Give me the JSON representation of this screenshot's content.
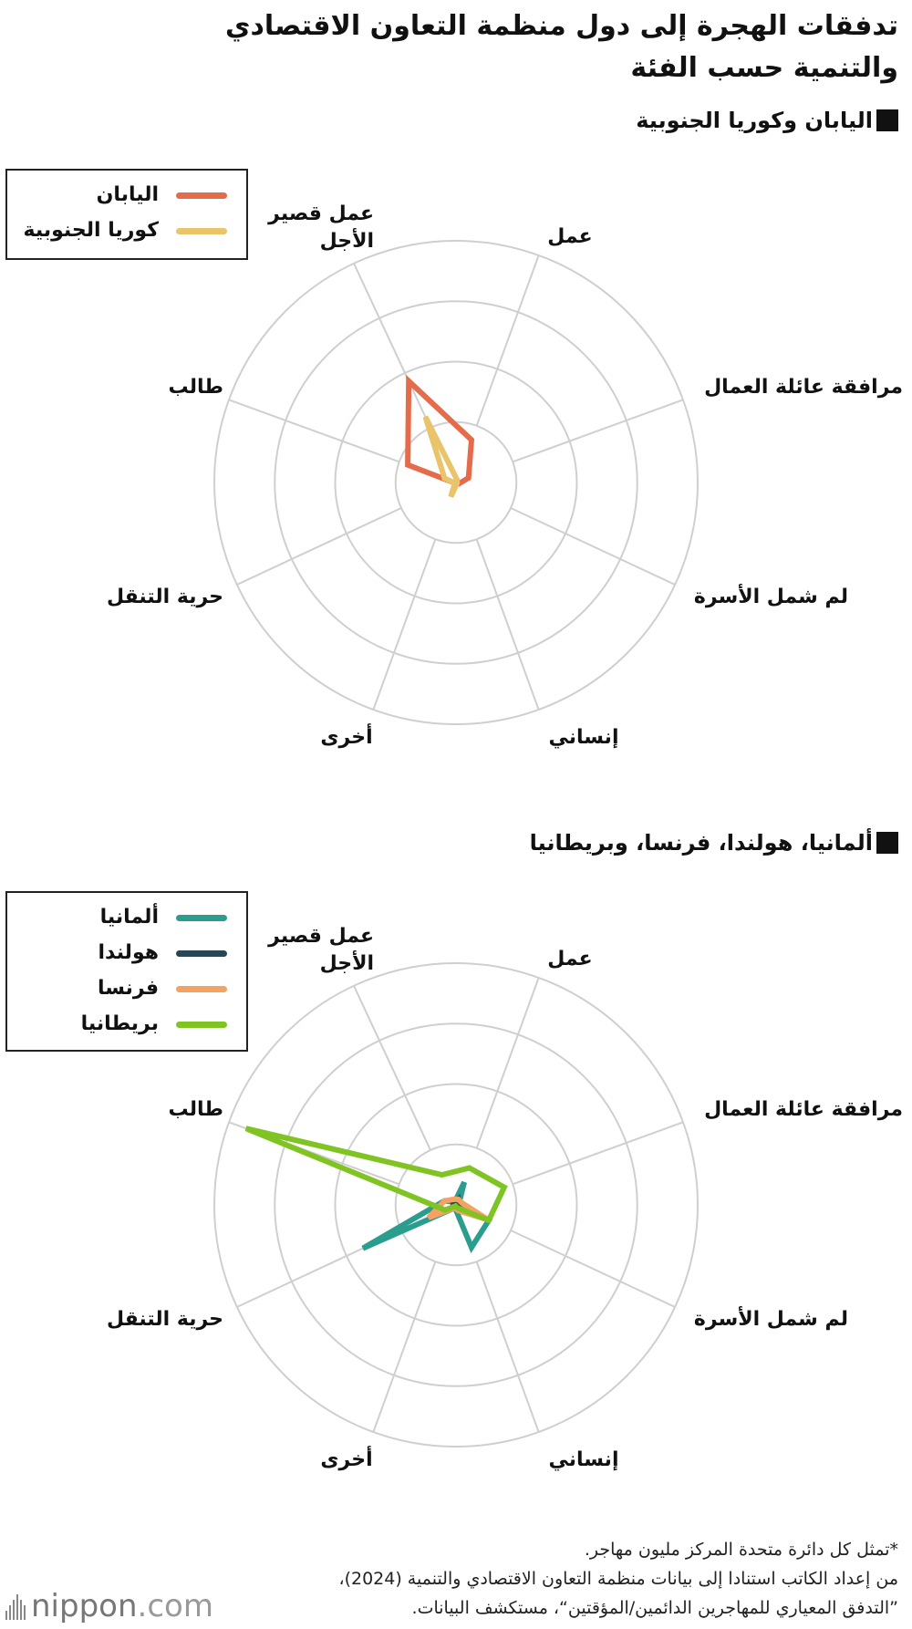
{
  "title": "تدفقات الهجرة إلى دول منظمة التعاون الاقتصادي والتنمية حسب الفئة",
  "chart_data": [
    {
      "type": "radar",
      "title": "اليابان وكوريا الجنوبية",
      "categories": [
        "عمل",
        "مرافقة عائلة العمال",
        "لم شمل الأسرة",
        "إنساني",
        "أخرى",
        "حرية التنقل",
        "طالب",
        "عمل قصير الأجل"
      ],
      "series": [
        {
          "name": "اليابان",
          "color": "#e46c4b",
          "values": [
            0.75,
            0.22,
            0.05,
            0.02,
            0.05,
            0.02,
            0.85,
            1.85
          ]
        },
        {
          "name": "كوريا الجنوبية",
          "color": "#e9c46a",
          "values": [
            0.05,
            0.02,
            0.02,
            0.03,
            0.25,
            0.02,
            0.2,
            1.2
          ]
        }
      ],
      "r_max": 4,
      "ring_step": 1,
      "legend_position": "top-left"
    },
    {
      "type": "radar",
      "title": "ألمانيا، هولندا، فرنسا، وبريطانيا",
      "categories": [
        "عمل",
        "مرافقة عائلة العمال",
        "لم شمل الأسرة",
        "إنساني",
        "أخرى",
        "حرية التنقل",
        "طالب",
        "عمل قصير الأجل"
      ],
      "series": [
        {
          "name": "ألمانيا",
          "color": "#2a9d8f",
          "values": [
            0.4,
            0.05,
            0.6,
            0.75,
            0.05,
            1.7,
            0.2,
            0.05
          ]
        },
        {
          "name": "هولندا",
          "color": "#264653",
          "values": [
            0.1,
            0.05,
            0.05,
            0.05,
            0.02,
            0.05,
            0.05,
            0.05
          ]
        },
        {
          "name": "فرنسا",
          "color": "#f4a261",
          "values": [
            0.1,
            0.1,
            0.6,
            0.1,
            0.05,
            0.5,
            0.2,
            0.1
          ]
        },
        {
          "name": "بريطانيا",
          "color": "#80c423",
          "values": [
            0.65,
            0.85,
            0.6,
            0.05,
            0.02,
            0.2,
            3.7,
            0.55
          ]
        }
      ],
      "r_max": 4,
      "ring_step": 1,
      "legend_position": "top-left"
    }
  ],
  "footnote": {
    "line1": "*تمثل كل دائرة متحدة المركز مليون مهاجر.",
    "line2": "من إعداد الكاتب استنادا إلى بيانات منظمة التعاون الاقتصادي والتنمية (2024)،",
    "line3": "”التدفق المعياري للمهاجرين الدائمين/المؤقتين“، مستكشف البيانات."
  },
  "logo": {
    "name": "nippon",
    "suffix": ".com"
  }
}
